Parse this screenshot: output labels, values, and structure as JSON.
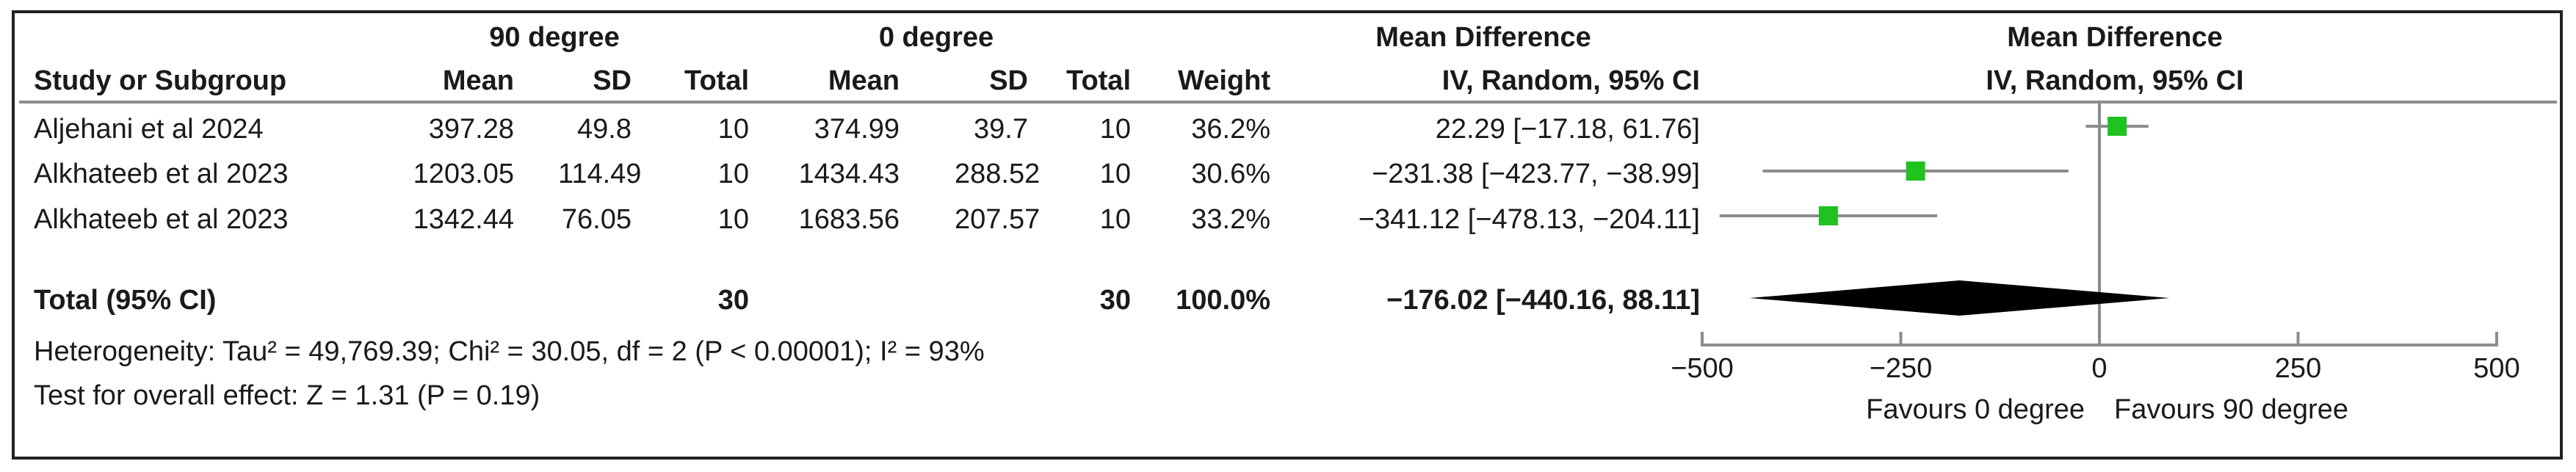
{
  "header": {
    "group1": "90 degree",
    "group2": "0 degree",
    "md_title": "Mean Difference",
    "md_sub": "IV, Random, 95% CI",
    "plot_title": "Mean Difference",
    "plot_sub": "IV, Random, 95% CI",
    "col_study": "Study or Subgroup",
    "col_mean1": "Mean",
    "col_sd1": "SD",
    "col_total1": "Total",
    "col_mean2": "Mean",
    "col_sd2": "SD",
    "col_total2": "Total",
    "col_weight": "Weight"
  },
  "rows": [
    {
      "study": "Aljehani et al 2024",
      "mean1": "397.28",
      "sd1": "49.8",
      "total1": "10",
      "mean2": "374.99",
      "sd2": "39.7",
      "total2": "10",
      "weight": "36.2%",
      "ci": "22.29 [−17.18, 61.76]"
    },
    {
      "study": "Alkhateeb et al 2023",
      "mean1": "1203.05",
      "sd1": "114.49",
      "total1": "10",
      "mean2": "1434.43",
      "sd2": "288.52",
      "total2": "10",
      "weight": "30.6%",
      "ci": "−231.38 [−423.77, −38.99]"
    },
    {
      "study": "Alkhateeb et al 2023",
      "mean1": "1342.44",
      "sd1": "76.05",
      "total1": "10",
      "mean2": "1683.56",
      "sd2": "207.57",
      "total2": "10",
      "weight": "33.2%",
      "ci": "−341.12 [−478.13, −204.11]"
    }
  ],
  "total": {
    "label": "Total (95% CI)",
    "total1": "30",
    "total2": "30",
    "weight": "100.0%",
    "ci": "−176.02 [−440.16, 88.11]"
  },
  "heterogeneity": "Heterogeneity: Tau² = 49,769.39; Chi² = 30.05, df = 2 (P < 0.00001); I² = 93%",
  "overall_effect": "Test for overall effect: Z = 1.31 (P = 0.19)",
  "chart_data": {
    "type": "forest",
    "xlim": [
      -500,
      500
    ],
    "ticks": [
      -500,
      -250,
      0,
      250,
      500
    ],
    "tick_labels": [
      "−500",
      "−250",
      "0",
      "250",
      "500"
    ],
    "favours_left": "Favours 0 degree",
    "favours_right": "Favours 90 degree",
    "studies": [
      {
        "estimate": 22.29,
        "lower": -17.18,
        "upper": 61.76
      },
      {
        "estimate": -231.38,
        "lower": -423.77,
        "upper": -38.99
      },
      {
        "estimate": -341.12,
        "lower": -478.13,
        "upper": -204.11
      }
    ],
    "pooled": {
      "estimate": -176.02,
      "lower": -440.16,
      "upper": 88.11
    },
    "colors": {
      "study_marker": "#1fc21f",
      "diamond": "#000000",
      "lines": "#8c8c8c"
    }
  }
}
